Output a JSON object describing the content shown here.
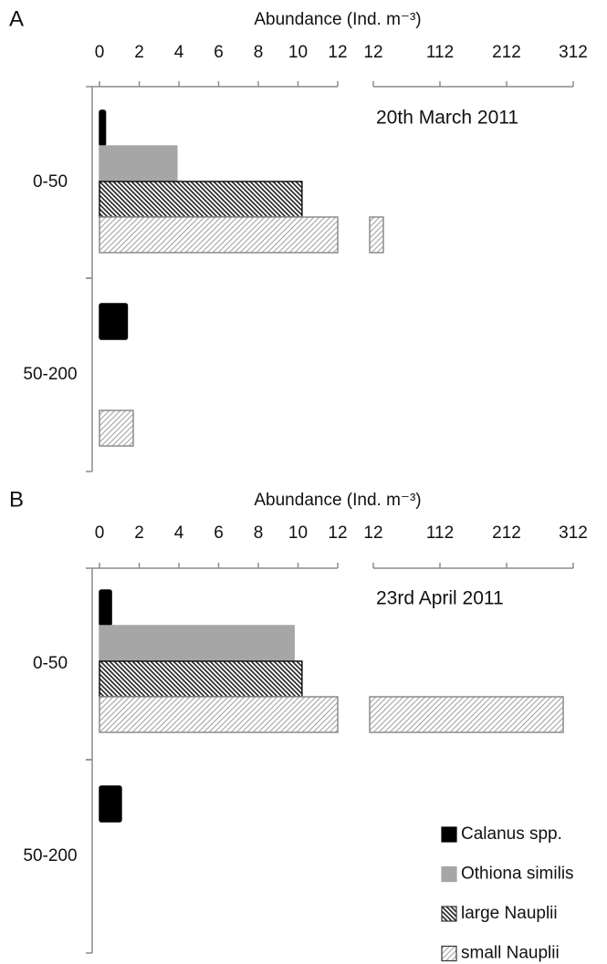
{
  "chart_data": [
    {
      "type": "bar",
      "orientation": "horizontal",
      "panel": "A",
      "title": "Abundance (Ind. m⁻³)",
      "annotation": "20th March 2011",
      "categories": [
        "0-50",
        "50-200"
      ],
      "xlim": [
        0,
        12
      ],
      "xticks": [
        0,
        2,
        4,
        6,
        8,
        10,
        12
      ],
      "x2lim": [
        12,
        312
      ],
      "x2ticks": [
        12,
        112,
        212,
        312
      ],
      "series": [
        {
          "name": "Calanus spp.",
          "color": "#000000",
          "pattern": "solid",
          "values": [
            0.3,
            1.4
          ]
        },
        {
          "name": "Othiona similis",
          "color": "#a6a6a6",
          "pattern": "solid",
          "values": [
            3.9,
            null
          ]
        },
        {
          "name": "large Nauplii",
          "color": "#333333",
          "pattern": "back-diagonal",
          "values": [
            10.2,
            null
          ]
        },
        {
          "name": "small Nauplii",
          "color": "#9a9a9a",
          "pattern": "diagonal",
          "values": [
            27,
            1.7
          ]
        }
      ]
    },
    {
      "type": "bar",
      "orientation": "horizontal",
      "panel": "B",
      "title": "Abundance (Ind. m⁻³)",
      "annotation": "23rd April 2011",
      "categories": [
        "0-50",
        "50-200"
      ],
      "xlim": [
        0,
        12
      ],
      "xticks": [
        0,
        2,
        4,
        6,
        8,
        10,
        12
      ],
      "x2lim": [
        12,
        312
      ],
      "x2ticks": [
        12,
        112,
        212,
        312
      ],
      "legend": "lower right",
      "series": [
        {
          "name": "Calanus spp.",
          "color": "#000000",
          "pattern": "solid",
          "values": [
            0.6,
            1.1
          ]
        },
        {
          "name": "Othiona similis",
          "color": "#a6a6a6",
          "pattern": "solid",
          "values": [
            9.8,
            null
          ]
        },
        {
          "name": "large Nauplii",
          "color": "#333333",
          "pattern": "back-diagonal",
          "values": [
            10.2,
            null
          ]
        },
        {
          "name": "small Nauplii",
          "color": "#9a9a9a",
          "pattern": "diagonal",
          "values": [
            297,
            null
          ]
        }
      ]
    }
  ]
}
